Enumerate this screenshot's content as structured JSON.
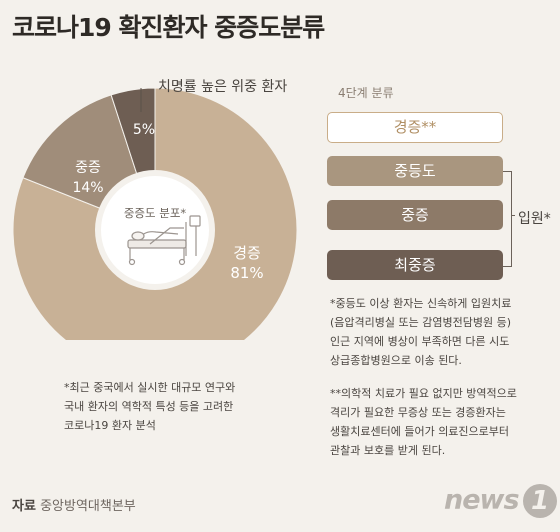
{
  "title": "코로나19 확진환자 중증도분류",
  "chart_data": {
    "type": "pie",
    "categories": [
      "치명률 높은 위중 환자",
      "중증",
      "경증"
    ],
    "values": [
      5,
      14,
      81
    ],
    "labels": [
      "5%",
      "14%",
      "81%"
    ],
    "segment_names": [
      "",
      "중증",
      "경증"
    ],
    "colors": [
      "#6e5e53",
      "#a08d7a",
      "#c8b196"
    ],
    "center_label": "중증도 분포*"
  },
  "stages": {
    "title": "4단계 분류",
    "items": [
      "경증**",
      "중등도",
      "중증",
      "최중증"
    ],
    "group_label": "입원*"
  },
  "notes": {
    "left": [
      "*최근 중국에서 실시한 대규모 연구와",
      "국내 환자의 역학적 특성 등을 고려한",
      "코로나19 환자 분석"
    ],
    "right1": [
      "*중등도 이상 환자는 신속하게 입원치료",
      "(음압격리병실 또는 감염병전담병원 등)",
      "인근 지역에 병상이 부족하면 다른 시도",
      "상급종합병원으로 이송 된다."
    ],
    "right2": [
      "**의학적 치료가 필요 없지만 방역적으로",
      "격리가 필요한 무증상 또는 경증환자는",
      "생활치료센터에 들어가 의료진으로부터",
      "관찰과 보호를 받게 된다."
    ]
  },
  "source": {
    "label": "자료",
    "value": "중앙방역대책본부"
  },
  "logo": {
    "text": "news",
    "mark": "1"
  }
}
